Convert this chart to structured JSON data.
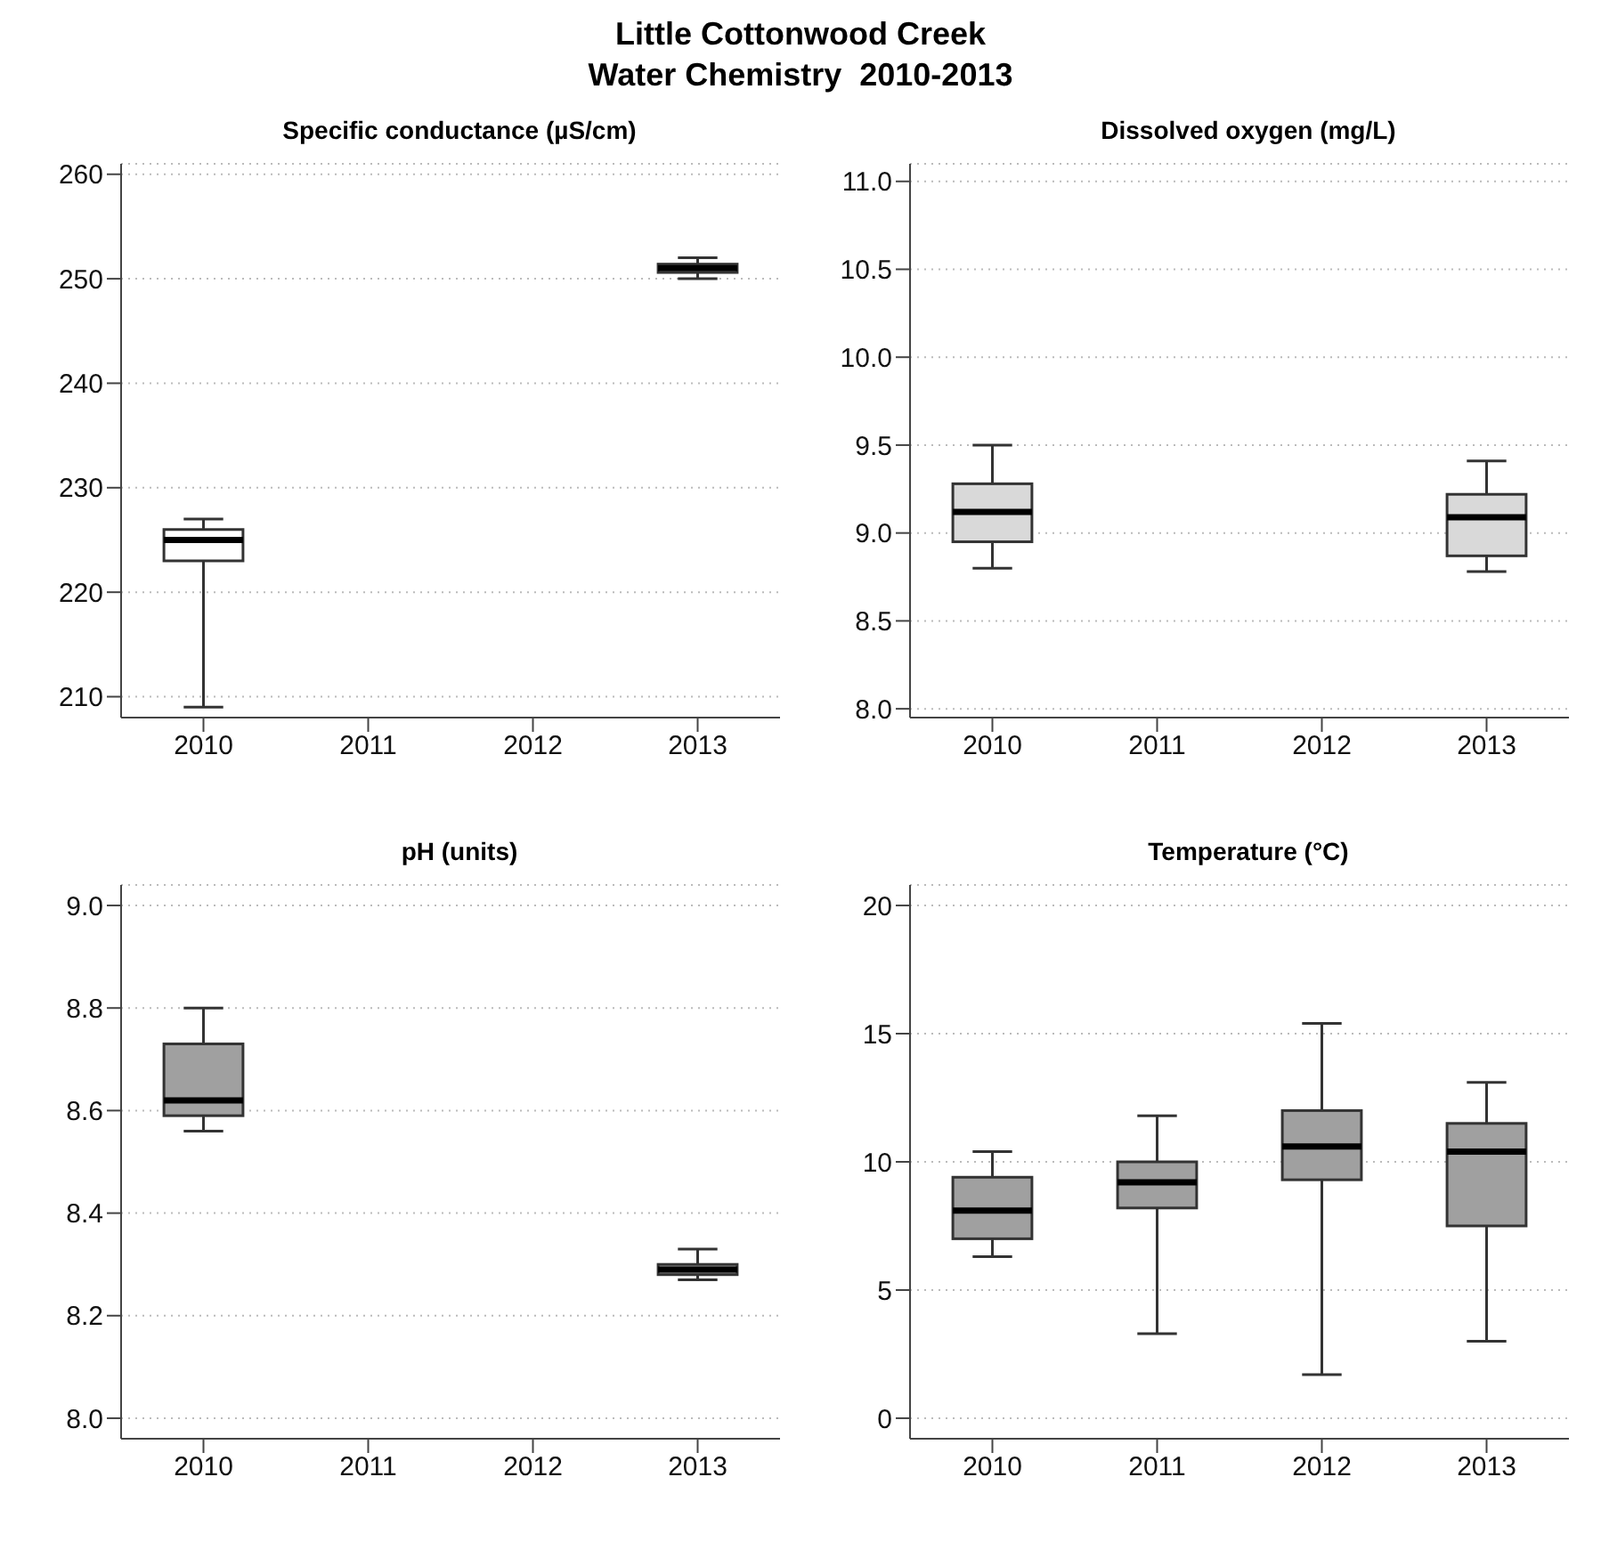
{
  "chart_data": [
    {
      "type": "other",
      "title": "Little Cottonwood Creek",
      "subtitle": "Water Chemistry  2010-2013"
    },
    {
      "type": "box",
      "title": "Specific conductance (µS/cm)",
      "categories": [
        "2010",
        "2011",
        "2012",
        "2013"
      ],
      "ylim": [
        208,
        261
      ],
      "yticks": [
        210,
        220,
        230,
        240,
        250,
        260
      ],
      "grid": "y",
      "legend": false,
      "series": [
        {
          "color": "#ffffff",
          "boxes": [
            {
              "low": 209,
              "q1": 223,
              "median": 225,
              "q3": 226,
              "high": 227
            },
            null,
            null,
            {
              "low": 250,
              "q1": 250.6,
              "median": 251,
              "q3": 251.4,
              "high": 252
            }
          ]
        }
      ]
    },
    {
      "type": "box",
      "title": "Dissolved oxygen (mg/L)",
      "categories": [
        "2010",
        "2011",
        "2012",
        "2013"
      ],
      "ylim": [
        7.95,
        11.1
      ],
      "yticks": [
        {
          "value": 8,
          "label": "8.0"
        },
        {
          "value": 8.5,
          "label": "8.5"
        },
        {
          "value": 9,
          "label": "9.0"
        },
        {
          "value": 9.5,
          "label": "9.5"
        },
        {
          "value": 10,
          "label": "10.0"
        },
        {
          "value": 10.5,
          "label": "10.5"
        },
        {
          "value": 11,
          "label": "11.0"
        }
      ],
      "grid": "y",
      "legend": false,
      "series": [
        {
          "color": "#d9d9d9",
          "boxes": [
            {
              "low": 8.8,
              "q1": 8.95,
              "median": 9.12,
              "q3": 9.28,
              "high": 9.5
            },
            null,
            null,
            {
              "low": 8.78,
              "q1": 8.87,
              "median": 9.09,
              "q3": 9.22,
              "high": 9.41
            }
          ]
        }
      ]
    },
    {
      "type": "box",
      "title": "pH (units)",
      "categories": [
        "2010",
        "2011",
        "2012",
        "2013"
      ],
      "ylim": [
        7.96,
        9.04
      ],
      "yticks": [
        {
          "value": 8,
          "label": "8.0"
        },
        {
          "value": 8.2,
          "label": "8.2"
        },
        {
          "value": 8.4,
          "label": "8.4"
        },
        {
          "value": 8.6,
          "label": "8.6"
        },
        {
          "value": 8.8,
          "label": "8.8"
        },
        {
          "value": 9,
          "label": "9.0"
        }
      ],
      "grid": "y",
      "legend": false,
      "series": [
        {
          "color": "#a0a0a0",
          "boxes": [
            {
              "low": 8.56,
              "q1": 8.59,
              "median": 8.62,
              "q3": 8.73,
              "high": 8.8
            },
            null,
            null,
            {
              "low": 8.27,
              "q1": 8.28,
              "median": 8.29,
              "q3": 8.3,
              "high": 8.33
            }
          ]
        }
      ]
    },
    {
      "type": "box",
      "title": "Temperature (°C)",
      "categories": [
        "2010",
        "2011",
        "2012",
        "2013"
      ],
      "ylim": [
        -0.8,
        20.8
      ],
      "yticks": [
        0,
        5,
        10,
        15,
        20
      ],
      "grid": "y",
      "legend": false,
      "series": [
        {
          "color": "#a0a0a0",
          "boxes": [
            {
              "low": 6.3,
              "q1": 7,
              "median": 8.1,
              "q3": 9.4,
              "high": 10.4
            },
            {
              "low": 3.3,
              "q1": 8.2,
              "median": 9.2,
              "q3": 10,
              "high": 11.8
            },
            {
              "low": 1.7,
              "q1": 9.3,
              "median": 10.6,
              "q3": 12,
              "high": 15.4
            },
            {
              "low": 3,
              "q1": 7.5,
              "median": 10.4,
              "q3": 11.5,
              "high": 13.1
            }
          ]
        }
      ]
    }
  ]
}
